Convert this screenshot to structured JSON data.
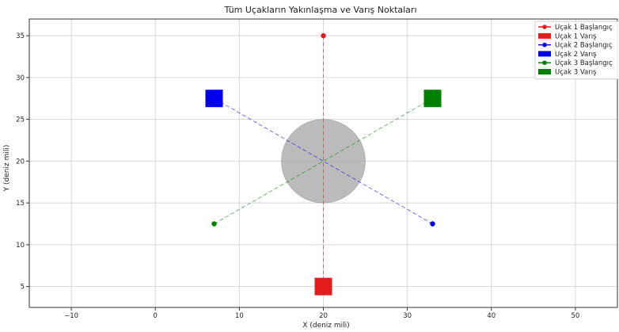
{
  "chart_data": {
    "type": "scatter",
    "title": "Tüm Uçakların Yakınlaşma ve Varış Noktaları",
    "xlabel": "X (deniz mili)",
    "ylabel": "Y (deniz mili)",
    "xlim": [
      -15,
      55
    ],
    "ylim": [
      2.5,
      37
    ],
    "grid": true,
    "legend_position": "top-right",
    "xticks": [
      -10,
      0,
      10,
      20,
      30,
      40,
      50
    ],
    "yticks": [
      5,
      10,
      15,
      20,
      25,
      30,
      35
    ],
    "center_zone": {
      "x": 20,
      "y": 20,
      "radius": 5,
      "color": "#aaaaaa"
    },
    "series": [
      {
        "name_start": "Uçak 1 Başlangıç",
        "name_end": "Uçak 1 Varış",
        "color": "#e41a1c",
        "start": {
          "x": 20,
          "y": 35
        },
        "end": {
          "x": 20,
          "y": 5
        }
      },
      {
        "name_start": "Uçak 2 Başlangıç",
        "name_end": "Uçak 2 Varış",
        "color": "#0000ee",
        "start": {
          "x": 33,
          "y": 12.5
        },
        "end": {
          "x": 7,
          "y": 27.5
        }
      },
      {
        "name_start": "Uçak 3 Başlangıç",
        "name_end": "Uçak 3 Varış",
        "color": "#008000",
        "start": {
          "x": 7,
          "y": 12.5
        },
        "end": {
          "x": 33,
          "y": 27.5
        }
      }
    ]
  }
}
